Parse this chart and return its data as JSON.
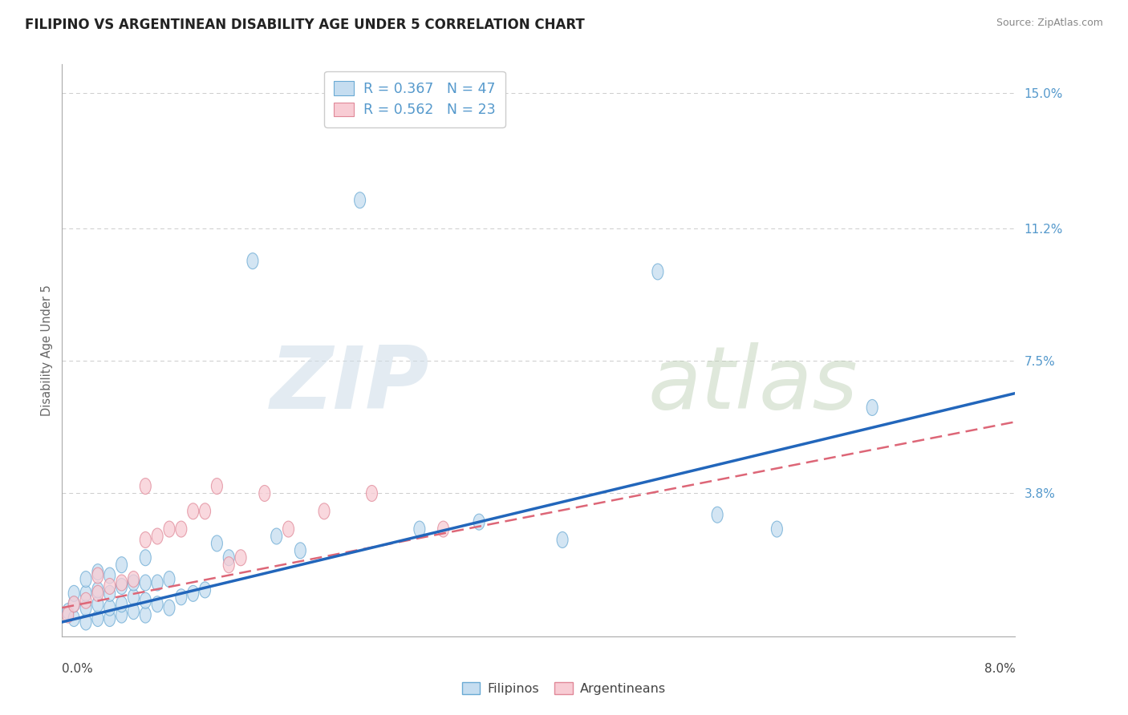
{
  "title": "FILIPINO VS ARGENTINEAN DISABILITY AGE UNDER 5 CORRELATION CHART",
  "source": "Source: ZipAtlas.com",
  "ylabel": "Disability Age Under 5",
  "ytick_vals": [
    0.0,
    0.038,
    0.075,
    0.112,
    0.15
  ],
  "ytick_labels": [
    "",
    "3.8%",
    "7.5%",
    "11.2%",
    "15.0%"
  ],
  "xlim": [
    0.0,
    0.08
  ],
  "ylim": [
    -0.002,
    0.158
  ],
  "filipino_R": 0.367,
  "filipino_N": 47,
  "argentinean_R": 0.562,
  "argentinean_N": 23,
  "filipino_fill": "#c5ddf0",
  "filipino_edge": "#6aaad4",
  "argentinean_fill": "#f8ccd4",
  "argentinean_edge": "#e08898",
  "filipino_line_color": "#2266bb",
  "argentinean_line_color": "#dd6677",
  "tick_label_color": "#5599cc",
  "grid_color": "#cccccc",
  "title_color": "#222222",
  "source_color": "#888888",
  "ylabel_color": "#666666",
  "filipinos_x": [
    0.0005,
    0.001,
    0.001,
    0.001,
    0.002,
    0.002,
    0.002,
    0.002,
    0.003,
    0.003,
    0.003,
    0.003,
    0.004,
    0.004,
    0.004,
    0.004,
    0.005,
    0.005,
    0.005,
    0.005,
    0.006,
    0.006,
    0.006,
    0.007,
    0.007,
    0.007,
    0.007,
    0.008,
    0.008,
    0.009,
    0.009,
    0.01,
    0.011,
    0.012,
    0.013,
    0.014,
    0.016,
    0.018,
    0.02,
    0.025,
    0.03,
    0.035,
    0.042,
    0.05,
    0.055,
    0.06,
    0.068
  ],
  "filipinos_y": [
    0.005,
    0.003,
    0.007,
    0.01,
    0.002,
    0.006,
    0.01,
    0.014,
    0.003,
    0.007,
    0.011,
    0.016,
    0.003,
    0.006,
    0.01,
    0.015,
    0.004,
    0.007,
    0.012,
    0.018,
    0.005,
    0.009,
    0.013,
    0.004,
    0.008,
    0.013,
    0.02,
    0.007,
    0.013,
    0.006,
    0.014,
    0.009,
    0.01,
    0.011,
    0.024,
    0.02,
    0.103,
    0.026,
    0.022,
    0.12,
    0.028,
    0.03,
    0.025,
    0.1,
    0.032,
    0.028,
    0.062
  ],
  "argentineans_x": [
    0.0005,
    0.001,
    0.002,
    0.003,
    0.003,
    0.004,
    0.005,
    0.006,
    0.007,
    0.007,
    0.008,
    0.009,
    0.01,
    0.011,
    0.012,
    0.013,
    0.014,
    0.015,
    0.017,
    0.019,
    0.022,
    0.026,
    0.032
  ],
  "argentineans_y": [
    0.004,
    0.007,
    0.008,
    0.01,
    0.015,
    0.012,
    0.013,
    0.014,
    0.025,
    0.04,
    0.026,
    0.028,
    0.028,
    0.033,
    0.033,
    0.04,
    0.018,
    0.02,
    0.038,
    0.028,
    0.033,
    0.038,
    0.028
  ],
  "fil_line_x0": 0.0,
  "fil_line_y0": 0.002,
  "fil_line_x1": 0.08,
  "fil_line_y1": 0.066,
  "arg_line_x0": 0.0,
  "arg_line_y0": 0.006,
  "arg_line_x1": 0.08,
  "arg_line_y1": 0.058
}
